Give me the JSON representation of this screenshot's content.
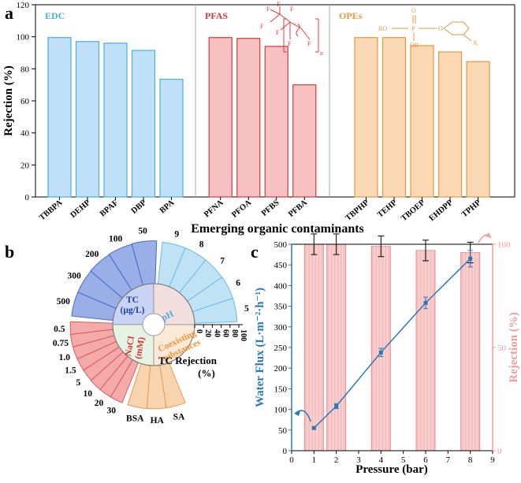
{
  "panels": {
    "a": {
      "label": "a"
    },
    "b": {
      "label": "b"
    },
    "c": {
      "label": "c"
    }
  },
  "chart_data": [
    {
      "id": "a",
      "type": "bar",
      "ylabel": "Rejection (%)",
      "xlabel": "Emerging organic contaminants",
      "ylim": [
        0,
        120
      ],
      "yticks": [
        0,
        20,
        40,
        60,
        80,
        100,
        120
      ],
      "groups": [
        {
          "name": "EDC",
          "fill": "#bfe0f7",
          "stroke": "#4aaee8",
          "categories": [
            "TBBPA",
            "DEHP",
            "BPAF",
            "DBP",
            "BPA"
          ],
          "values": [
            99.5,
            97,
            96,
            91.5,
            73.5
          ]
        },
        {
          "name": "PFAS",
          "fill": "#f6c1c0",
          "stroke": "#d63b3b",
          "categories": [
            "PFNA",
            "PFOA",
            "PFBS",
            "PFBA"
          ],
          "values": [
            99.5,
            99,
            94,
            70
          ]
        },
        {
          "name": "OPEs",
          "fill": "#fad8b4",
          "stroke": "#e8963f",
          "categories": [
            "TBPHP",
            "TEHP",
            "TBOEP",
            "EHDPP",
            "TPHP"
          ],
          "values": [
            99.5,
            99.5,
            94.5,
            90.5,
            84.5
          ]
        }
      ],
      "structure_labels": {
        "pfas": [
          "F",
          "F",
          "F",
          "F",
          "F",
          "F",
          "F",
          "n"
        ],
        "opes": [
          "O",
          "P",
          "RO",
          "O",
          "OR",
          "X"
        ]
      }
    },
    {
      "id": "b",
      "type": "polar-bar",
      "axis_title": "TC Rejection",
      "axis_unit": "(%)",
      "radial_ticks": [
        0,
        20,
        40,
        60,
        80,
        100
      ],
      "sectors": [
        {
          "group": "TC (µg/L)",
          "group_lines": [
            "TC",
            "(µg/L)"
          ],
          "fill": "#9aaee8",
          "stroke": "#4d68c8",
          "categories": [
            "500",
            "300",
            "200",
            "100",
            "50"
          ],
          "values": [
            94,
            94,
            95,
            96,
            97
          ]
        },
        {
          "group": "pH",
          "group_lines": [
            "pH"
          ],
          "fill": "#bfe3f5",
          "stroke": "#6cb9e6",
          "categories": [
            "9",
            "8",
            "7",
            "6",
            "5"
          ],
          "values": [
            95,
            95,
            95,
            96,
            96
          ]
        },
        {
          "group": "NaCl (mM)",
          "group_lines": [
            "NaCl",
            "(mM)"
          ],
          "fill": "#f4aaa8",
          "stroke": "#d95c5a",
          "categories": [
            "0.5",
            "0.75",
            "1.0",
            "1.5",
            "5",
            "10",
            "20",
            "30"
          ],
          "values": [
            96,
            97,
            97,
            97,
            97,
            98,
            98,
            98
          ]
        },
        {
          "group": "Coexisting substances",
          "group_lines": [
            "Coexisting",
            "substances"
          ],
          "fill": "#f8d4ae",
          "stroke": "#e79a52",
          "categories": [
            "BSA",
            "HA",
            "SA"
          ],
          "values": [
            98,
            98,
            98
          ]
        }
      ]
    },
    {
      "id": "c",
      "type": "bar+line",
      "xlabel": "Pressure (bar)",
      "ylabel_left": "Water Flux (L·m⁻²·h⁻¹)",
      "ylabel_right": "Rejection (%)",
      "xlim": [
        0,
        9
      ],
      "xticks": [
        0,
        1,
        2,
        3,
        4,
        5,
        6,
        7,
        8,
        9
      ],
      "ylim_left": [
        0,
        500
      ],
      "yticks_left": [
        0,
        50,
        100,
        150,
        200,
        250,
        300,
        350,
        400,
        450,
        500
      ],
      "ylim_right": [
        0,
        100
      ],
      "yticks_right": [
        0,
        50,
        100
      ],
      "flux": {
        "x": [
          1,
          2,
          4,
          6,
          8
        ],
        "y": [
          55,
          108,
          238,
          358,
          465
        ],
        "err": [
          3,
          6,
          10,
          14,
          20
        ]
      },
      "rejection": {
        "x": [
          1,
          2,
          4,
          6,
          8
        ],
        "y": [
          100,
          100,
          99,
          97,
          96
        ],
        "err": [
          5,
          5,
          5,
          5,
          5
        ]
      },
      "colors": {
        "line": "#2c79b8",
        "bar_fill": "#f7c1c1",
        "bar_stroke": "#ee8f8f",
        "right_axis": "#f39c9c"
      }
    }
  ]
}
